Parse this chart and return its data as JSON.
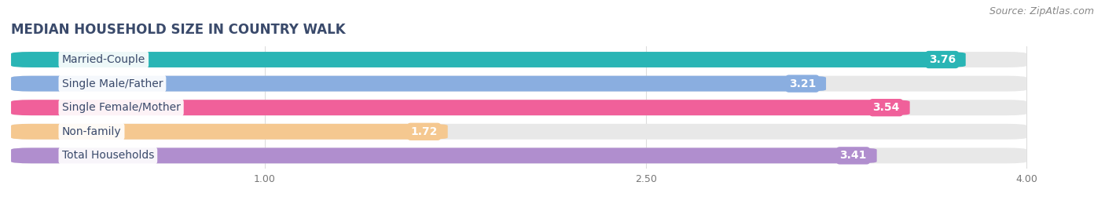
{
  "title": "MEDIAN HOUSEHOLD SIZE IN COUNTRY WALK",
  "source": "Source: ZipAtlas.com",
  "categories": [
    "Married-Couple",
    "Single Male/Father",
    "Single Female/Mother",
    "Non-family",
    "Total Households"
  ],
  "values": [
    3.76,
    3.21,
    3.54,
    1.72,
    3.41
  ],
  "bar_colors": [
    "#29b5b5",
    "#8aaee0",
    "#f0609a",
    "#f5c890",
    "#b08ece"
  ],
  "xlim_data": [
    0.0,
    4.2
  ],
  "xstart": 0.0,
  "xticks": [
    1.0,
    2.5,
    4.0
  ],
  "xtick_labels": [
    "1.00",
    "2.50",
    "4.00"
  ],
  "title_fontsize": 12,
  "source_fontsize": 9,
  "label_fontsize": 10,
  "value_fontsize": 10,
  "background_color": "#ffffff",
  "bar_bg_color": "#e8e8e8",
  "title_color": "#3a4a6b"
}
